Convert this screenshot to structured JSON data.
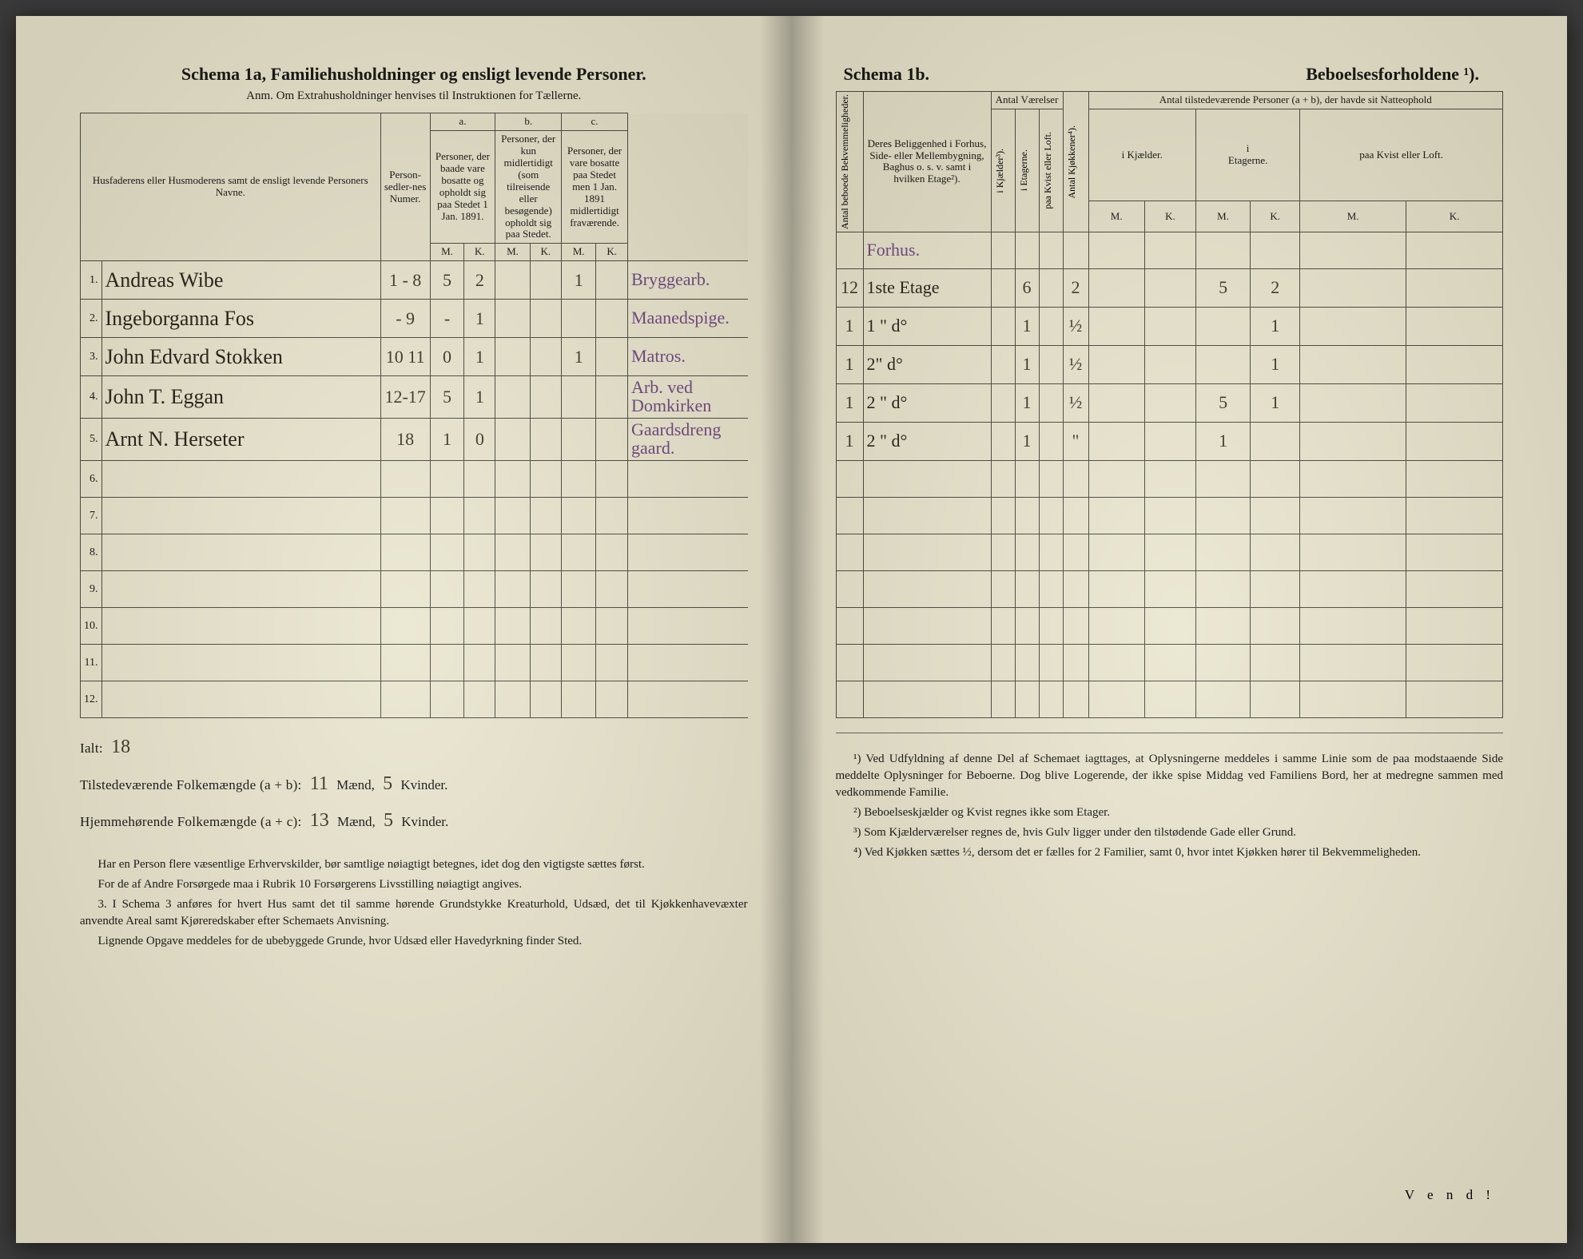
{
  "left": {
    "title": "Schema 1a,   Familiehusholdninger og ensligt levende Personer.",
    "anm": "Anm. Om Extrahusholdninger henvises til Instruktionen for Tællerne.",
    "col_names_label": "Husfaderens eller Husmoderens samt de ensligt levende Personers Navne.",
    "col_person_nr": "Person-sedler-nes Numer.",
    "col_a_top": "a.",
    "col_a": "Personer, der baade vare bosatte og opholdt sig paa Stedet 1 Jan. 1891.",
    "col_b_top": "b.",
    "col_b": "Personer, der kun midlertidigt (som tilreisende eller besøgende) opholdt sig paa Stedet.",
    "col_c_top": "c.",
    "col_c": "Personer, der vare bosatte paa Stedet men 1 Jan. 1891 midlertidigt fraværende.",
    "mk_m": "M.",
    "mk_k": "K.",
    "rows": [
      {
        "n": "1.",
        "name": "Andreas Wibe",
        "nr": "1 - 8",
        "aM": "5",
        "aK": "2",
        "bM": "",
        "bK": "",
        "cM": "1",
        "cK": "",
        "occ": "Bryggearb."
      },
      {
        "n": "2.",
        "name": "Ingeborganna Fos",
        "nr": "- 9",
        "aM": "-",
        "aK": "1",
        "bM": "",
        "bK": "",
        "cM": "",
        "cK": "",
        "occ": "Maanedspige."
      },
      {
        "n": "3.",
        "name": "John Edvard Stokken",
        "nr": "10 11",
        "aM": "0",
        "aK": "1",
        "bM": "",
        "bK": "",
        "cM": "1",
        "cK": "",
        "occ": "Matros."
      },
      {
        "n": "4.",
        "name": "John T. Eggan",
        "nr": "12-17",
        "aM": "5",
        "aK": "1",
        "bM": "",
        "bK": "",
        "cM": "",
        "cK": "",
        "occ": "Arb. ved Domkirken"
      },
      {
        "n": "5.",
        "name": "Arnt N. Herseter",
        "nr": "18",
        "aM": "1",
        "aK": "0",
        "bM": "",
        "bK": "",
        "cM": "",
        "cK": "",
        "occ": "Gaardsdreng gaard."
      }
    ],
    "empty_row_labels": [
      "6.",
      "7.",
      "8.",
      "9.",
      "10.",
      "11.",
      "12."
    ],
    "totals": {
      "ialt_label": "Ialt:",
      "ialt_val": "18",
      "present_label": "Tilstedeværende Folkemængde (a + b):",
      "present_m": "11",
      "present_m_unit": "Mænd,",
      "present_k": "5",
      "present_k_unit": "Kvinder.",
      "resident_label": "Hjemmehørende Folkemængde (a + c):",
      "resident_m": "13",
      "resident_m_unit": "Mænd,",
      "resident_k": "5",
      "resident_k_unit": "Kvinder."
    },
    "footnotes": {
      "p1": "Har en Person flere væsentlige Erhvervskilder, bør samtlige nøiagtigt betegnes, idet dog den vigtigste sættes først.",
      "p2": "For de af Andre Forsørgede maa i Rubrik 10 Forsørgerens Livsstilling nøiagtigt angives.",
      "p3": "3. I Schema 3 anføres for hvert Hus samt det til samme hørende Grundstykke Kreaturhold, Udsæd, det til Kjøkkenhavevæxter anvendte Areal samt Kjøreredskaber efter Schemaets Anvisning.",
      "p4": "Lignende Opgave meddeles for de ubebyggede Grunde, hvor Udsæd eller Havedyrkning finder Sted."
    }
  },
  "right": {
    "title_left": "Schema 1b.",
    "title_right": "Beboelsesforholdene ¹).",
    "col_bekv": "Antal beboede Bekvemmeligheder.",
    "col_belig": "Deres Beliggenhed i Forhus, Side- eller Mellembygning, Baghus o. s. v. samt i hvilken Etage²).",
    "grp_vaer": "Antal Værelser",
    "col_kjeld": "i Kjælder³).",
    "col_etag": "i Etagerne.",
    "col_kvist": "paa Kvist eller Loft.",
    "col_kjok": "Antal Kjøkkener⁴).",
    "grp_pers": "Antal tilstedeværende Personer (a + b), der havde sit Natteophold",
    "sub_kjeld": "i Kjælder.",
    "sub_etag_i": "i",
    "sub_etag": "Etagerne.",
    "sub_kvist": "paa Kvist eller Loft.",
    "mk_m": "M.",
    "mk_k": "K.",
    "pre_note": "Forhus.",
    "rows": [
      {
        "bekv": "12",
        "belig": "1ste Etage",
        "kj": "",
        "et": "6",
        "kv": "",
        "kk": "2",
        "km": "",
        "kk2": "",
        "em": "5",
        "ek": "2",
        "lm": "",
        "lk": ""
      },
      {
        "bekv": "1",
        "belig": "1 \"  d°",
        "kj": "",
        "et": "1",
        "kv": "",
        "kk": "½",
        "km": "",
        "kk2": "",
        "em": "",
        "ek": "1",
        "lm": "",
        "lk": ""
      },
      {
        "bekv": "1",
        "belig": "2\"  d°",
        "kj": "",
        "et": "1",
        "kv": "",
        "kk": "½",
        "km": "",
        "kk2": "",
        "em": "",
        "ek": "1",
        "lm": "",
        "lk": ""
      },
      {
        "bekv": "1",
        "belig": "2 \"  d°",
        "kj": "",
        "et": "1",
        "kv": "",
        "kk": "½",
        "km": "",
        "kk2": "",
        "em": "5",
        "ek": "1",
        "lm": "",
        "lk": ""
      },
      {
        "bekv": "1",
        "belig": "2 \"  d°",
        "kj": "",
        "et": "1",
        "kv": "",
        "kk": "\"",
        "km": "",
        "kk2": "",
        "em": "1",
        "ek": "",
        "lm": "",
        "lk": ""
      }
    ],
    "footnotes": {
      "f1": "¹) Ved Udfyldning af denne Del af Schemaet iagttages, at Oplysningerne meddeles i samme Linie som de paa modstaaende Side meddelte Oplysninger for Beboerne. Dog blive Logerende, der ikke spise Middag ved Familiens Bord, her at medregne sammen med vedkommende Familie.",
      "f2": "²) Beboelseskjælder og Kvist regnes ikke som Etager.",
      "f3": "³) Som Kjælderværelser regnes de, hvis Gulv ligger under den tilstødende Gade eller Grund.",
      "f4": "⁴) Ved Kjøkken sættes ½, dersom det er fælles for 2 Familier, samt 0, hvor intet Kjøkken hører til Bekvemmeligheden."
    },
    "vend": "V e n d !"
  },
  "style": {
    "paper": "#e8e4cf",
    "ink": "#2b241b",
    "purple": "#6b4a7a"
  }
}
